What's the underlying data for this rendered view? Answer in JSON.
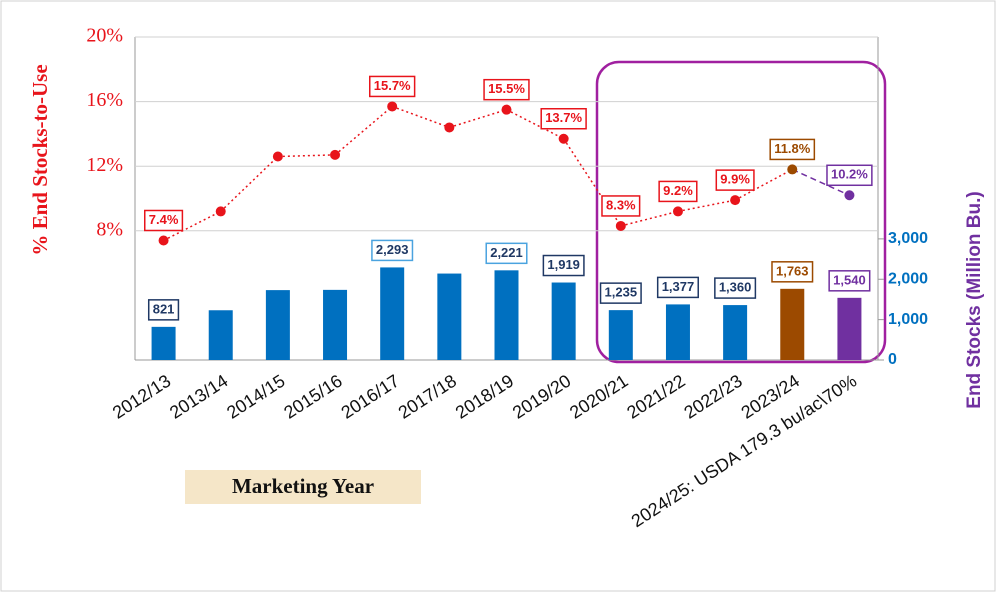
{
  "chart_data": {
    "type": "bar_line",
    "categories": [
      "2012/13",
      "2013/14",
      "2014/15",
      "2015/16",
      "2016/17",
      "2017/18",
      "2018/19",
      "2019/20",
      "2020/21",
      "2021/22",
      "2022/23",
      "2023/24",
      "2024/25: USDA 179.3 bu/ac\\70%"
    ],
    "series": [
      {
        "type": "bar",
        "axis": "y2",
        "values": [
          821,
          1232,
          1731,
          1737,
          2293,
          2141,
          2221,
          1919,
          1235,
          1377,
          1360,
          1763,
          1540
        ],
        "value_labels": [
          "821",
          null,
          null,
          null,
          "2,293",
          null,
          "2,221",
          "1,919",
          "1,235",
          "1,377",
          "1,360",
          "1,763",
          "1,540"
        ],
        "colors": [
          "#0070c0",
          "#0070c0",
          "#0070c0",
          "#0070c0",
          "#0070c0",
          "#0070c0",
          "#0070c0",
          "#0070c0",
          "#0070c0",
          "#0070c0",
          "#0070c0",
          "#9c4a00",
          "#7030a0"
        ],
        "label_colors": [
          "#1f3864",
          "#1f3864",
          "#1f3864",
          "#1f3864",
          "#1f3864",
          "#1f3864",
          "#1f3864",
          "#1f3864",
          "#1f3864",
          "#1f3864",
          "#1f3864",
          "#9c4a00",
          "#7030a0"
        ],
        "label_borders": [
          "#1f3864",
          "#1f3864",
          "#1f3864",
          "#1f3864",
          "#4aa3df",
          "#1f3864",
          "#4aa3df",
          "#1f3864",
          "#1f3864",
          "#1f3864",
          "#1f3864",
          "#9c4a00",
          "#7030a0"
        ]
      },
      {
        "type": "line",
        "axis": "y",
        "values": [
          7.4,
          9.2,
          12.6,
          12.7,
          15.7,
          14.4,
          15.5,
          13.7,
          8.3,
          9.2,
          9.9,
          11.8,
          10.2
        ],
        "value_labels": [
          "7.4%",
          null,
          null,
          null,
          "15.7%",
          null,
          "15.5%",
          "13.7%",
          "8.3%",
          "9.2%",
          "9.9%",
          "11.8%",
          "10.2%"
        ],
        "colors": [
          "#e8141b",
          "#e8141b",
          "#e8141b",
          "#e8141b",
          "#e8141b",
          "#e8141b",
          "#e8141b",
          "#e8141b",
          "#e8141b",
          "#e8141b",
          "#e8141b",
          "#9c4a00",
          "#7030a0"
        ]
      }
    ],
    "ylabel": "% End Stocks-to-Use",
    "y2label": "End Stocks (Million Bu.)",
    "xlabel": "Marketing Year",
    "ylim": [
      0,
      20
    ],
    "yticks": [
      {
        "value": 8,
        "label": "8%"
      },
      {
        "value": 12,
        "label": "12%"
      },
      {
        "value": 16,
        "label": "16%"
      },
      {
        "value": 20,
        "label": "20%"
      }
    ],
    "y2lim": [
      0,
      8000
    ],
    "y2ticks": [
      0,
      {
        "value": 1000,
        "label": "1,000"
      },
      {
        "value": 2000,
        "label": "2,000"
      },
      {
        "value": 3000,
        "label": "3,000"
      }
    ],
    "grid": true
  }
}
